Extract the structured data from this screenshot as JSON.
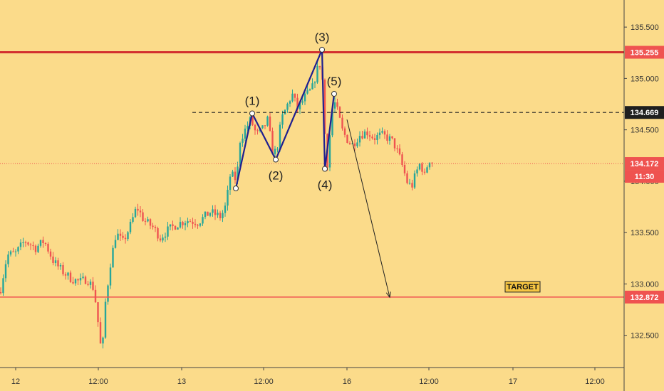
{
  "colors": {
    "background": "#fbdb8a",
    "up": "#26a69a",
    "down": "#ef5350",
    "level_red": "#d32f2f",
    "dashed": "#222222",
    "wave": "#1f1f8f",
    "arrow": "#222222",
    "price_badge_bg": "#ef5350",
    "dark_badge_bg": "#1f1f1f",
    "target_box_bg": "#f5c542"
  },
  "chart_data": {
    "type": "candlestick",
    "title": "",
    "xlabel": "",
    "ylabel": "",
    "ylim": [
      132.2,
      135.75
    ],
    "x_ticks": [
      "12",
      "12:00",
      "13",
      "12:00",
      "16",
      "12:00",
      "17",
      "12:00"
    ],
    "y_ticks": [
      "132.500",
      "133.000",
      "133.500",
      "134.000",
      "134.500",
      "135.000",
      "135.500"
    ],
    "levels": [
      {
        "name": "resistance",
        "value": 135.255,
        "label": "135.255",
        "style": "solid-thick"
      },
      {
        "name": "wave-5-level",
        "value": 134.669,
        "label": "134.669",
        "style": "dashed"
      },
      {
        "name": "current-price",
        "value": 134.172,
        "label": "134.172",
        "style": "dotted",
        "countdown": "11:30"
      },
      {
        "name": "target",
        "value": 132.872,
        "label": "132.872",
        "style": "solid"
      }
    ],
    "target_label": "TARGET",
    "wave_points": [
      {
        "label": "",
        "t": 0.0,
        "y": 133.93
      },
      {
        "label": "(1)",
        "t": 0.1,
        "y": 134.66
      },
      {
        "label": "(2)",
        "t": 0.26,
        "y": 134.21
      },
      {
        "label": "(3)",
        "t": 0.55,
        "y": 135.28
      },
      {
        "label": "(4)",
        "t": 0.58,
        "y": 134.12
      },
      {
        "label": "(5)",
        "t": 0.65,
        "y": 134.85
      }
    ],
    "projection": {
      "from_y": 134.6,
      "to_y": 132.87
    },
    "candle_anchors": [
      [
        0,
        132.92
      ],
      [
        10,
        133.28
      ],
      [
        22,
        133.3
      ],
      [
        35,
        133.42
      ],
      [
        50,
        133.35
      ],
      [
        62,
        133.42
      ],
      [
        75,
        133.22
      ],
      [
        88,
        133.12
      ],
      [
        100,
        133.05
      ],
      [
        112,
        133.02
      ],
      [
        122,
        133.05
      ],
      [
        132,
        132.95
      ],
      [
        138,
        132.6
      ],
      [
        143,
        132.28
      ],
      [
        148,
        132.82
      ],
      [
        155,
        133.2
      ],
      [
        163,
        133.5
      ],
      [
        172,
        133.4
      ],
      [
        182,
        133.55
      ],
      [
        192,
        133.75
      ],
      [
        202,
        133.62
      ],
      [
        215,
        133.55
      ],
      [
        225,
        133.45
      ],
      [
        235,
        133.52
      ],
      [
        248,
        133.58
      ],
      [
        262,
        133.62
      ],
      [
        278,
        133.6
      ],
      [
        295,
        133.7
      ],
      [
        310,
        133.65
      ],
      [
        318,
        133.78
      ],
      [
        322,
        134.05
      ],
      [
        328,
        134.05
      ],
      [
        332,
        134.0
      ],
      [
        337,
        134.4
      ],
      [
        344,
        134.5
      ],
      [
        352,
        134.6
      ],
      [
        360,
        134.45
      ],
      [
        368,
        134.5
      ],
      [
        376,
        134.6
      ],
      [
        382,
        134.3
      ],
      [
        388,
        134.28
      ],
      [
        395,
        134.6
      ],
      [
        402,
        134.72
      ],
      [
        410,
        134.85
      ],
      [
        418,
        134.7
      ],
      [
        428,
        134.82
      ],
      [
        438,
        134.9
      ],
      [
        446,
        135.1
      ],
      [
        450,
        135.15
      ],
      [
        453,
        134.95
      ],
      [
        457,
        134.3
      ],
      [
        460,
        134.15
      ],
      [
        464,
        134.55
      ],
      [
        468,
        134.8
      ],
      [
        475,
        134.65
      ],
      [
        480,
        134.5
      ],
      [
        486,
        134.42
      ],
      [
        494,
        134.35
      ],
      [
        505,
        134.45
      ],
      [
        515,
        134.48
      ],
      [
        525,
        134.42
      ],
      [
        535,
        134.45
      ],
      [
        545,
        134.42
      ],
      [
        552,
        134.38
      ],
      [
        560,
        134.25
      ],
      [
        566,
        134.12
      ],
      [
        572,
        133.98
      ],
      [
        578,
        133.95
      ],
      [
        584,
        134.08
      ],
      [
        590,
        134.18
      ],
      [
        596,
        134.05
      ],
      [
        602,
        134.22
      ],
      [
        608,
        134.17
      ]
    ]
  }
}
